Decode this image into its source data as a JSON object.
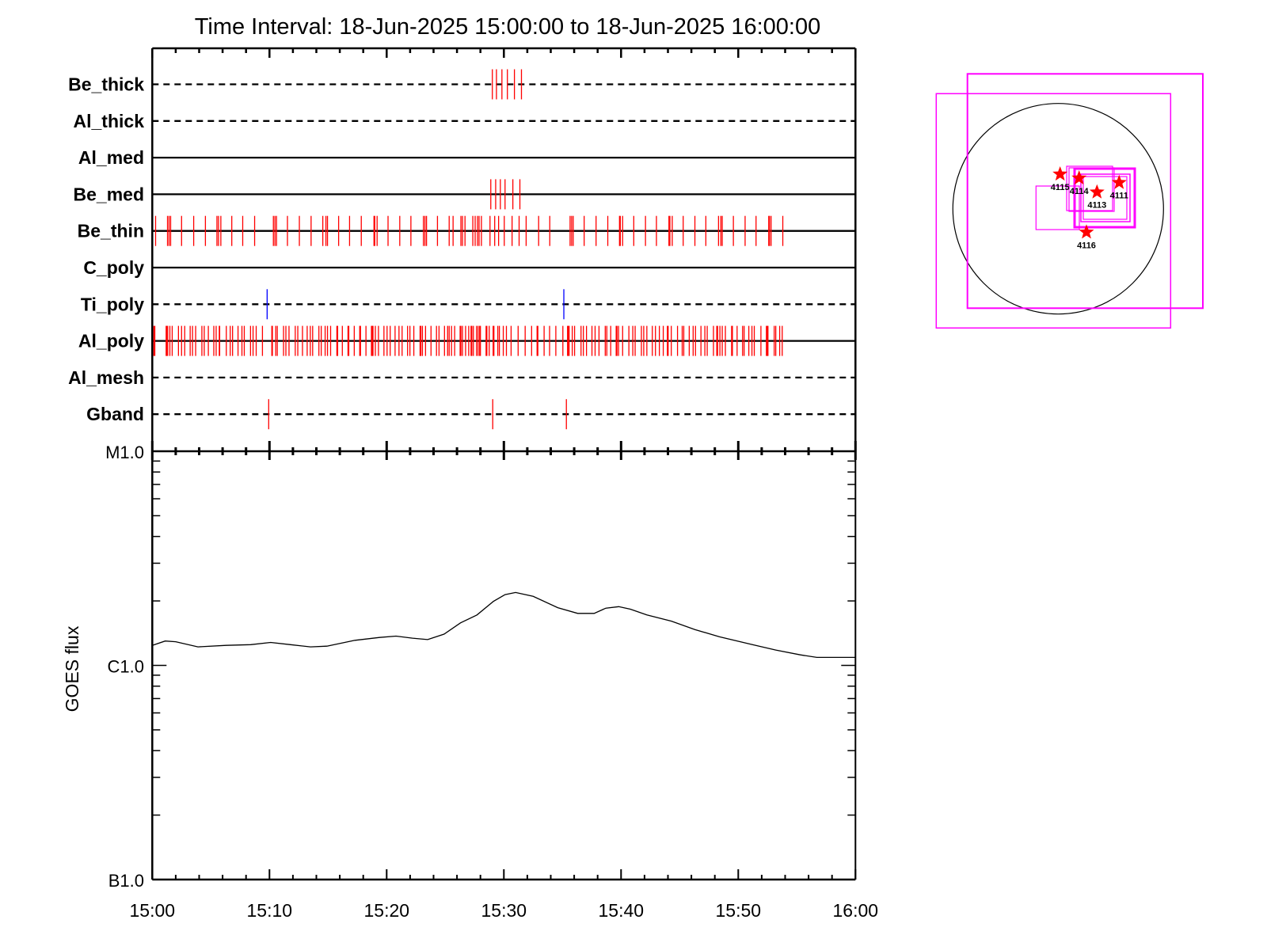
{
  "title": "Time Interval: 18-Jun-2025 15:00:00 to 18-Jun-2025 16:00:00",
  "chart_data": [
    {
      "type": "scatter",
      "description_kind": "event-timeline",
      "xlim": [
        "15:00:00",
        "16:00:00"
      ],
      "x_ticks": [
        "15:00",
        "15:10",
        "15:20",
        "15:30",
        "15:40",
        "15:50",
        "16:00"
      ],
      "rows": [
        {
          "name": "Be_thick",
          "line": "dashed",
          "color": "#ff0000",
          "events": [
            "15:29:01",
            "15:29:22",
            "15:29:50",
            "15:30:18",
            "15:30:54",
            "15:31:30"
          ]
        },
        {
          "name": "Al_thick",
          "line": "dashed",
          "color": "#ff0000",
          "events": []
        },
        {
          "name": "Al_med",
          "line": "solid",
          "color": "#ff0000",
          "events": []
        },
        {
          "name": "Be_med",
          "line": "solid",
          "color": "#ff0000",
          "events": [
            "15:28:53",
            "15:29:18",
            "15:29:42",
            "15:30:06",
            "15:30:46",
            "15:31:22"
          ]
        },
        {
          "name": "Be_thin",
          "line": "solid",
          "color": "#ff0000",
          "events": [
            "15:00:17",
            "15:01:18",
            "15:01:26",
            "15:01:34",
            "15:02:30",
            "15:03:32",
            "15:04:32",
            "15:05:31",
            "15:05:39",
            "15:05:51",
            "15:06:47",
            "15:07:43",
            "15:08:44",
            "15:10:20",
            "15:10:28",
            "15:10:36",
            "15:11:32",
            "15:12:33",
            "15:13:33",
            "15:14:33",
            "15:14:49",
            "15:14:57",
            "15:15:54",
            "15:16:50",
            "15:17:50",
            "15:18:55",
            "15:18:59",
            "15:19:11",
            "15:20:07",
            "15:21:07",
            "15:22:04",
            "15:23:08",
            "15:23:16",
            "15:23:24",
            "15:24:20",
            "15:25:20",
            "15:25:40",
            "15:26:20",
            "15:26:28",
            "15:26:41",
            "15:27:21",
            "15:27:33",
            "15:27:45",
            "15:27:53",
            "15:28:05",
            "15:28:49",
            "15:29:13",
            "15:29:33",
            "15:30:02",
            "15:30:42",
            "15:31:18",
            "15:31:54",
            "15:32:58",
            "15:33:55",
            "15:35:39",
            "15:35:47",
            "15:35:55",
            "15:36:51",
            "15:37:52",
            "15:38:52",
            "15:39:52",
            "15:39:56",
            "15:40:08",
            "15:41:05",
            "15:42:05",
            "15:43:01",
            "15:44:05",
            "15:44:10",
            "15:44:22",
            "15:45:18",
            "15:46:18",
            "15:47:14",
            "15:48:19",
            "15:48:31",
            "15:48:38",
            "15:49:35",
            "15:50:35",
            "15:51:31",
            "15:52:36",
            "15:52:40",
            "15:52:48",
            "15:53:48"
          ]
        },
        {
          "name": "C_poly",
          "line": "solid",
          "color": "#ff0000",
          "events": []
        },
        {
          "name": "Ti_poly",
          "line": "dashed",
          "color": "#0000ff",
          "events": [
            "15:09:48",
            "15:35:07"
          ]
        },
        {
          "name": "Al_poly",
          "line": "solid",
          "color": "#ff0000",
          "events": [
            "15:00:08",
            "15:00:13",
            "15:01:11",
            "15:01:14",
            "15:01:19",
            "15:01:30",
            "15:01:42",
            "15:02:14",
            "15:02:30",
            "15:02:46",
            "15:03:14",
            "15:03:26",
            "15:03:42",
            "15:04:14",
            "15:04:26",
            "15:04:47",
            "15:05:15",
            "15:05:27",
            "15:05:43",
            "15:05:45",
            "15:06:19",
            "15:06:39",
            "15:06:51",
            "15:07:19",
            "15:07:39",
            "15:07:51",
            "15:08:23",
            "15:08:36",
            "15:08:52",
            "15:09:24",
            "15:10:12",
            "15:10:15",
            "15:10:32",
            "15:10:40",
            "15:11:12",
            "15:11:24",
            "15:11:40",
            "15:12:12",
            "15:12:25",
            "15:12:49",
            "15:13:13",
            "15:13:29",
            "15:13:41",
            "15:14:13",
            "15:14:25",
            "15:14:45",
            "15:14:57",
            "15:15:13",
            "15:15:45",
            "15:15:49",
            "15:16:13",
            "15:16:42",
            "15:16:46",
            "15:17:14",
            "15:17:42",
            "15:17:46",
            "15:18:14",
            "15:18:42",
            "15:18:46",
            "15:18:50",
            "15:19:02",
            "15:19:18",
            "15:19:46",
            "15:20:02",
            "15:20:18",
            "15:20:43",
            "15:21:03",
            "15:21:19",
            "15:21:47",
            "15:21:59",
            "15:22:19",
            "15:22:51",
            "15:22:55",
            "15:23:03",
            "15:23:19",
            "15:23:47",
            "15:24:15",
            "15:24:28",
            "15:24:56",
            "15:25:12",
            "15:25:20",
            "15:25:32",
            "15:25:48",
            "15:26:16",
            "15:26:20",
            "15:26:28",
            "15:26:44",
            "15:27:00",
            "15:27:12",
            "15:27:16",
            "15:27:24",
            "15:27:40",
            "15:27:48",
            "15:27:56",
            "15:28:00",
            "15:28:29",
            "15:28:33",
            "15:28:45",
            "15:29:05",
            "15:29:09",
            "15:29:29",
            "15:29:37",
            "15:29:57",
            "15:30:13",
            "15:30:37",
            "15:31:13",
            "15:31:49",
            "15:32:22",
            "15:32:50",
            "15:32:54",
            "15:33:26",
            "15:33:54",
            "15:34:26",
            "15:35:02",
            "15:35:26",
            "15:35:30",
            "15:35:34",
            "15:35:50",
            "15:36:02",
            "15:36:35",
            "15:36:47",
            "15:37:03",
            "15:37:31",
            "15:37:47",
            "15:38:07",
            "15:38:39",
            "15:38:47",
            "15:39:07",
            "15:39:35",
            "15:39:39",
            "15:39:47",
            "15:40:08",
            "15:40:40",
            "15:41:00",
            "15:41:12",
            "15:41:44",
            "15:41:56",
            "15:42:12",
            "15:42:40",
            "15:42:56",
            "15:43:16",
            "15:43:36",
            "15:43:57",
            "15:44:01",
            "15:44:17",
            "15:44:49",
            "15:45:13",
            "15:45:21",
            "15:45:49",
            "15:46:09",
            "15:46:21",
            "15:46:49",
            "15:47:09",
            "15:47:21",
            "15:47:53",
            "15:48:10",
            "15:48:14",
            "15:48:26",
            "15:48:38",
            "15:48:54",
            "15:49:26",
            "15:49:30",
            "15:49:54",
            "15:50:22",
            "15:50:30",
            "15:50:54",
            "15:51:10",
            "15:51:22",
            "15:51:56",
            "15:52:24",
            "15:52:28",
            "15:52:32",
            "15:53:04",
            "15:53:12",
            "15:53:32",
            "15:53:45"
          ]
        },
        {
          "name": "Al_mesh",
          "line": "dashed",
          "color": "#ff0000",
          "events": []
        },
        {
          "name": "Gband",
          "line": "dashed",
          "color": "#ff0000",
          "events": [
            "15:09:56",
            "15:29:03",
            "15:35:20"
          ]
        }
      ]
    },
    {
      "type": "line",
      "ylabel": "GOES flux",
      "yscale": "log",
      "ylim": [
        1e-07,
        1e-05
      ],
      "y_ticks": [
        {
          "label": "M1.0",
          "value": 1e-05
        },
        {
          "label": "C1.0",
          "value": 1e-06
        },
        {
          "label": "B1.0",
          "value": 1e-07
        }
      ],
      "xlim": [
        "15:00:00",
        "16:00:00"
      ],
      "x_ticks": [
        "15:00",
        "15:10",
        "15:20",
        "15:30",
        "15:40",
        "15:50",
        "16:00"
      ],
      "color": "#000000",
      "series": [
        {
          "x": [
            "15:00:00",
            "15:01:06",
            "15:02:00",
            "15:03:54",
            "15:06:18",
            "15:08:24",
            "15:10:06",
            "15:11:48",
            "15:13:30",
            "15:14:54",
            "15:17:18",
            "15:19:24",
            "15:20:48",
            "15:22:12",
            "15:23:30",
            "15:24:54",
            "15:26:18",
            "15:27:42",
            "15:29:06",
            "15:30:06",
            "15:31:00",
            "15:32:30",
            "15:34:36",
            "15:36:18",
            "15:37:42",
            "15:38:42",
            "15:39:48",
            "15:40:48",
            "15:42:12",
            "15:44:18",
            "15:46:18",
            "15:48:24",
            "15:51:12",
            "15:53:12",
            "15:55:18",
            "15:56:42",
            "16:00:00"
          ],
          "y": [
            1.24e-06,
            1.3e-06,
            1.29e-06,
            1.22e-06,
            1.24e-06,
            1.25e-06,
            1.28e-06,
            1.25e-06,
            1.22e-06,
            1.23e-06,
            1.31e-06,
            1.35e-06,
            1.37e-06,
            1.34e-06,
            1.32e-06,
            1.4e-06,
            1.58e-06,
            1.72e-06,
            1.99e-06,
            2.14e-06,
            2.19e-06,
            2.1e-06,
            1.86e-06,
            1.75e-06,
            1.75e-06,
            1.85e-06,
            1.88e-06,
            1.83e-06,
            1.72e-06,
            1.61e-06,
            1.47e-06,
            1.36e-06,
            1.25e-06,
            1.18e-06,
            1.12e-06,
            1.09e-06,
            1.09e-06
          ]
        }
      ]
    }
  ],
  "sun_map": {
    "disk_color": "#000000",
    "fov_color": "#ff00ff",
    "marker_color": "#ff0000",
    "active_regions": [
      "4115",
      "4114",
      "4113",
      "4111",
      "4116"
    ]
  }
}
